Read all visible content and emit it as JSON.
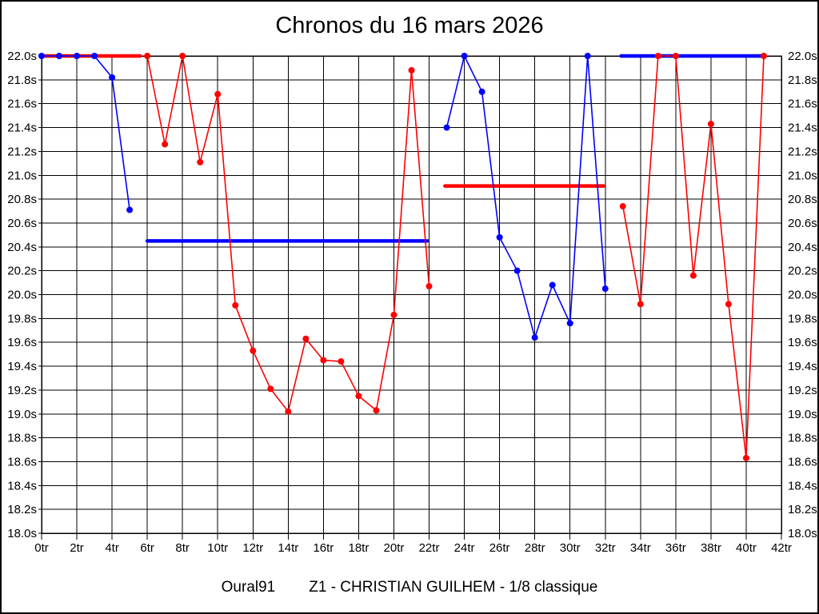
{
  "title": "Chronos du 16 mars 2026",
  "footer": {
    "club": "Oural91",
    "event": "Z1 - CHRISTIAN GUILHEM - 1/8 classique"
  },
  "chart_data": {
    "type": "line",
    "title": "Chronos du 16 mars 2026",
    "x_axis": {
      "min": 0,
      "max": 42,
      "tick_step": 2,
      "unit": "tr",
      "tick_labels": [
        "0tr",
        "2tr",
        "4tr",
        "6tr",
        "8tr",
        "10tr",
        "12tr",
        "14tr",
        "16tr",
        "18tr",
        "20tr",
        "22tr",
        "24tr",
        "26tr",
        "28tr",
        "30tr",
        "32tr",
        "34tr",
        "36tr",
        "38tr",
        "40tr",
        "42tr"
      ]
    },
    "y_axis": {
      "min": 18.0,
      "max": 22.0,
      "tick_step": 0.2,
      "unit": "s",
      "labels_on_both_sides": true,
      "tick_labels": [
        "22.0s",
        "21.8s",
        "21.6s",
        "21.4s",
        "21.2s",
        "21.0s",
        "20.8s",
        "20.6s",
        "20.4s",
        "20.2s",
        "20.0s",
        "19.8s",
        "19.6s",
        "19.4s",
        "19.2s",
        "19.0s",
        "18.8s",
        "18.6s",
        "18.4s",
        "18.2s",
        "18.0s"
      ]
    },
    "grid": true,
    "legend": "none",
    "colors": {
      "red": "#ff0000",
      "blue": "#0000ff",
      "grid": "#000000",
      "background": "#ffffff"
    },
    "series": [
      {
        "name": "red-series",
        "color_key": "red",
        "runs": [
          [
            [
              6,
              22.0
            ],
            [
              7,
              21.26
            ],
            [
              8,
              22.0
            ],
            [
              9,
              21.11
            ],
            [
              10,
              21.68
            ],
            [
              11,
              19.91
            ],
            [
              12,
              19.53
            ],
            [
              13,
              19.21
            ],
            [
              14,
              19.02
            ],
            [
              15,
              19.63
            ],
            [
              16,
              19.45
            ],
            [
              17,
              19.44
            ],
            [
              18,
              19.15
            ],
            [
              19,
              19.03
            ],
            [
              20,
              19.83
            ],
            [
              21,
              21.88
            ],
            [
              22,
              20.07
            ]
          ],
          [
            [
              33,
              20.74
            ],
            [
              34,
              19.92
            ],
            [
              35,
              22.0
            ],
            [
              36,
              22.0
            ],
            [
              37,
              20.16
            ],
            [
              38,
              21.43
            ],
            [
              39,
              19.92
            ],
            [
              40,
              18.63
            ],
            [
              41,
              22.0
            ]
          ]
        ],
        "flat_segments": [
          {
            "from": 0,
            "to": 5.6,
            "value": 22.0
          },
          {
            "from": 22.9,
            "to": 31.9,
            "value": 20.91
          }
        ]
      },
      {
        "name": "blue-series",
        "color_key": "blue",
        "runs": [
          [
            [
              0,
              22.0
            ],
            [
              1,
              22.0
            ],
            [
              2,
              22.0
            ],
            [
              3,
              22.0
            ],
            [
              4,
              21.82
            ],
            [
              5,
              20.71
            ]
          ],
          [
            [
              23,
              21.4
            ],
            [
              24,
              22.0
            ],
            [
              25,
              21.7
            ],
            [
              26,
              20.48
            ],
            [
              27,
              20.2
            ],
            [
              28,
              19.64
            ],
            [
              29,
              20.08
            ],
            [
              30,
              19.76
            ],
            [
              31,
              22.0
            ],
            [
              32,
              20.05
            ]
          ]
        ],
        "flat_segments": [
          {
            "from": 6,
            "to": 21.9,
            "value": 20.45
          },
          {
            "from": 32.9,
            "to": 40.9,
            "value": 22.0
          }
        ]
      }
    ]
  }
}
